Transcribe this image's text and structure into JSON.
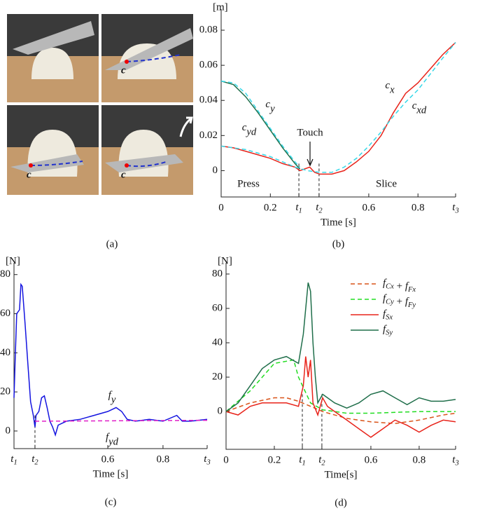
{
  "photos": {
    "caption": "(a)",
    "point_labels": [
      "c",
      "c",
      "c"
    ]
  },
  "chart_data": [
    {
      "type": "line",
      "caption": "(b)",
      "ylabel": "[m]",
      "xlabel": "Time [s]",
      "annotations": [
        "Press",
        "Slice",
        "Touch"
      ],
      "xlim": [
        0,
        0.953
      ],
      "ylim": [
        -0.015,
        0.092
      ],
      "xticks": [
        0,
        0.2,
        {
          "value": 0.316,
          "label": "t1"
        },
        {
          "value": 0.398,
          "label": "t2"
        },
        0.6,
        0.8,
        {
          "value": 0.953,
          "label": "t3"
        }
      ],
      "yticks": [
        0,
        0.02,
        0.04,
        0.06,
        0.08
      ],
      "series": [
        {
          "name": "cy",
          "color": "#1f6e4a",
          "dash": false,
          "x": [
            0,
            0.05,
            0.1,
            0.15,
            0.2,
            0.25,
            0.3,
            0.32
          ],
          "values": [
            0.051,
            0.049,
            0.042,
            0.033,
            0.023,
            0.013,
            0.004,
            0.001
          ]
        },
        {
          "name": "cyd",
          "color": "#36d8e8",
          "dash": true,
          "x": [
            0,
            0.05,
            0.1,
            0.15,
            0.2,
            0.25,
            0.3,
            0.32
          ],
          "values": [
            0.051,
            0.05,
            0.044,
            0.034,
            0.024,
            0.014,
            0.005,
            0.002
          ]
        },
        {
          "name": "cx",
          "color": "#e8231a",
          "dash": false,
          "x": [
            0,
            0.05,
            0.1,
            0.15,
            0.2,
            0.25,
            0.3,
            0.32,
            0.36,
            0.38,
            0.4,
            0.45,
            0.5,
            0.55,
            0.6,
            0.65,
            0.7,
            0.75,
            0.8,
            0.85,
            0.9,
            0.953
          ],
          "values": [
            0.014,
            0.013,
            0.011,
            0.009,
            0.007,
            0.004,
            0.002,
            0,
            0.002,
            -0.001,
            -0.002,
            -0.002,
            0,
            0.005,
            0.011,
            0.02,
            0.033,
            0.044,
            0.05,
            0.058,
            0.066,
            0.073
          ]
        },
        {
          "name": "cxd",
          "color": "#36d8e8",
          "dash": true,
          "x": [
            0,
            0.1,
            0.2,
            0.3,
            0.35,
            0.4,
            0.45,
            0.5,
            0.55,
            0.6,
            0.65,
            0.7,
            0.75,
            0.8,
            0.85,
            0.9,
            0.953
          ],
          "values": [
            0.014,
            0.012,
            0.008,
            0.002,
            0,
            -0.001,
            -0.001,
            0.002,
            0.007,
            0.014,
            0.022,
            0.031,
            0.039,
            0.046,
            0.055,
            0.064,
            0.073
          ]
        }
      ]
    },
    {
      "type": "line",
      "caption": "(c)",
      "ylabel": "[N]",
      "xlabel": "Time [s]",
      "xlim": [
        0.26,
        0.96
      ],
      "ylim": [
        -9,
        86
      ],
      "xticks": [
        {
          "value": 0.26,
          "label": "t1"
        },
        {
          "value": 0.336,
          "label": "t2"
        },
        0.6,
        0.8,
        {
          "value": 0.96,
          "label": "t3"
        }
      ],
      "yticks": [
        0,
        20,
        40,
        60,
        80
      ],
      "series": [
        {
          "name": "fy",
          "color": "#1414e0",
          "dash": false,
          "x": [
            0.26,
            0.265,
            0.27,
            0.28,
            0.285,
            0.29,
            0.3,
            0.31,
            0.32,
            0.33,
            0.336,
            0.34,
            0.35,
            0.36,
            0.37,
            0.38,
            0.39,
            0.4,
            0.41,
            0.42,
            0.45,
            0.5,
            0.55,
            0.6,
            0.63,
            0.65,
            0.67,
            0.7,
            0.75,
            0.8,
            0.85,
            0.87,
            0.9,
            0.96
          ],
          "values": [
            17,
            40,
            60,
            62,
            75,
            74,
            55,
            35,
            15,
            8,
            2,
            8,
            10,
            17,
            18,
            12,
            5,
            2,
            -2,
            3,
            5,
            6,
            8,
            10,
            12,
            10,
            6,
            5,
            6,
            5,
            8,
            5,
            5,
            6
          ]
        },
        {
          "name": "fyd",
          "color": "#e020c8",
          "dash": true,
          "x": [
            0.336,
            0.96
          ],
          "values": [
            5,
            5.5
          ]
        }
      ]
    },
    {
      "type": "line",
      "caption": "(d)",
      "ylabel": "[N]",
      "xlabel": "Time[s]",
      "legend": "upper right",
      "xlim": [
        0,
        0.951
      ],
      "ylim": [
        -22,
        86.5
      ],
      "xticks": [
        0,
        0.2,
        {
          "value": 0.316,
          "label": "t1"
        },
        {
          "value": 0.397,
          "label": "t2"
        },
        0.6,
        0.8,
        {
          "value": 0.951,
          "label": "t3"
        }
      ],
      "yticks": [
        0,
        20,
        40,
        60,
        80
      ],
      "series": [
        {
          "name": "fCx + fFx",
          "color": "#d95319",
          "dash": true,
          "x": [
            0,
            0.1,
            0.2,
            0.25,
            0.3,
            0.35,
            0.4,
            0.5,
            0.6,
            0.7,
            0.8,
            0.9,
            0.951
          ],
          "values": [
            0,
            5,
            8,
            8,
            6,
            3,
            0,
            -4,
            -6,
            -7,
            -5,
            -2,
            -1
          ]
        },
        {
          "name": "fCy + fFy",
          "color": "#22dd22",
          "dash": true,
          "x": [
            0,
            0.1,
            0.2,
            0.28,
            0.3,
            0.35,
            0.4,
            0.5,
            0.6,
            0.8,
            0.951
          ],
          "values": [
            0,
            12,
            28,
            30,
            20,
            5,
            1,
            -1,
            -1,
            0,
            0
          ]
        },
        {
          "name": "fSx",
          "color": "#e8231a",
          "dash": false,
          "x": [
            0,
            0.05,
            0.1,
            0.15,
            0.2,
            0.25,
            0.3,
            0.32,
            0.33,
            0.34,
            0.35,
            0.36,
            0.38,
            0.4,
            0.42,
            0.45,
            0.5,
            0.55,
            0.6,
            0.65,
            0.7,
            0.75,
            0.8,
            0.85,
            0.9,
            0.951
          ],
          "values": [
            0,
            -2,
            3,
            5,
            5,
            5,
            3,
            15,
            32,
            20,
            30,
            5,
            -2,
            8,
            3,
            0,
            -5,
            -10,
            -15,
            -10,
            -5,
            -8,
            -12,
            -8,
            -5,
            -6
          ]
        },
        {
          "name": "fSy",
          "color": "#1f6e4a",
          "dash": false,
          "x": [
            0,
            0.05,
            0.1,
            0.15,
            0.2,
            0.25,
            0.3,
            0.32,
            0.34,
            0.35,
            0.36,
            0.37,
            0.38,
            0.4,
            0.45,
            0.5,
            0.55,
            0.6,
            0.65,
            0.7,
            0.75,
            0.8,
            0.85,
            0.9,
            0.951
          ],
          "values": [
            0,
            5,
            15,
            25,
            30,
            32,
            28,
            45,
            75,
            70,
            40,
            20,
            5,
            10,
            5,
            2,
            5,
            10,
            12,
            8,
            4,
            8,
            6,
            6,
            7
          ]
        }
      ]
    }
  ]
}
